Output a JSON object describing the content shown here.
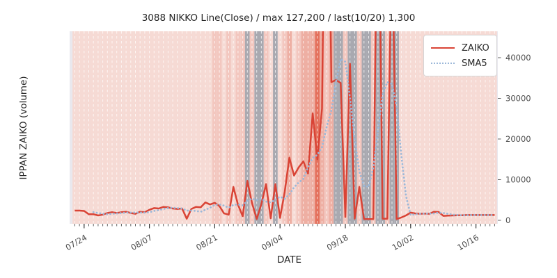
{
  "title": "3088 NIKKO Line(Close) / max 127,200 / last(10/20) 1,300",
  "chart_data": {
    "type": "line",
    "title": "3088 NIKKO Line(Close) / max 127,200 / last(10/20) 1,300",
    "xlabel": "DATE",
    "ylabel": "IPPAN ZAIKO (volume)",
    "x_start_date": "07/22",
    "x_tick_labels": [
      "07/24",
      "08/07",
      "08/21",
      "09/04",
      "09/18",
      "10/02",
      "10/16"
    ],
    "x_tick_indices": [
      2,
      16,
      30,
      44,
      58,
      72,
      86
    ],
    "y_ticks": [
      0,
      10000,
      20000,
      30000,
      40000
    ],
    "ylim": [
      -1500,
      46500
    ],
    "grid": "vertical daily white dashed",
    "legend_position": "upper right",
    "max_value": 127200,
    "last_value": 1300,
    "last_date": "10/20",
    "series": [
      {
        "name": "ZAIKO",
        "style": "solid",
        "color": "#d94335",
        "values": [
          2400,
          2400,
          2300,
          1500,
          1500,
          1200,
          1400,
          1800,
          2000,
          1800,
          2000,
          2100,
          1800,
          1600,
          2100,
          2000,
          2600,
          3000,
          2900,
          3300,
          3200,
          2900,
          2800,
          2900,
          400,
          2800,
          3300,
          3200,
          4400,
          3900,
          4300,
          3500,
          1700,
          1400,
          8200,
          3800,
          1000,
          9700,
          4200,
          300,
          4000,
          8900,
          500,
          8900,
          600,
          7000,
          15400,
          11000,
          13000,
          14500,
          11500,
          26300,
          15000,
          27500,
          127200,
          34000,
          34500,
          33800,
          800,
          38500,
          400,
          8200,
          300,
          300,
          300,
          95000,
          400,
          400,
          73000,
          300,
          700,
          1200,
          1900,
          1700,
          1600,
          1650,
          1600,
          2100,
          2050,
          1100,
          1150,
          1200,
          1250,
          1250,
          1300,
          1300,
          1300,
          1300,
          1300,
          1300,
          1300
        ]
      },
      {
        "name": "SMA5",
        "style": "dotted",
        "color": "#9cb8d9",
        "values": [
          null,
          null,
          null,
          null,
          2000,
          1800,
          1600,
          1500,
          1600,
          1700,
          1800,
          1900,
          1900,
          1900,
          1900,
          1900,
          2000,
          2300,
          2500,
          2800,
          3000,
          3100,
          3000,
          2900,
          2400,
          2400,
          2300,
          2100,
          2600,
          3100,
          3800,
          3900,
          3600,
          3100,
          3800,
          3900,
          3700,
          4800,
          5300,
          5000,
          5300,
          4600,
          4400,
          5100,
          5800,
          5300,
          6400,
          8100,
          9300,
          10200,
          13100,
          15300,
          16100,
          18000,
          23000,
          27000,
          34000,
          39700,
          39000,
          30000,
          20000,
          12000,
          8500,
          8200,
          13000,
          22000,
          31000,
          34000,
          33500,
          28000,
          16000,
          6000,
          1300,
          1500,
          1600,
          1650,
          1650,
          1700,
          1900,
          1800,
          1600,
          1400,
          1300,
          1250,
          1250,
          1300,
          1300,
          1300,
          1300,
          1300,
          1300
        ]
      }
    ],
    "band_palette": {
      "a": "#f6dad4",
      "b": "#f3c7bf",
      "c": "#eeafa3",
      "d": "#e4705c",
      "g": "#a9a9b0"
    },
    "background_bands": [
      "a",
      "a",
      "a",
      "a",
      "a",
      "a",
      "a",
      "a",
      "a",
      "a",
      "a",
      "a",
      "a",
      "a",
      "a",
      "a",
      "a",
      "a",
      "a",
      "a",
      "a",
      "a",
      "a",
      "a",
      "a",
      "a",
      "a",
      "a",
      "a",
      "a",
      "b",
      "b",
      "a",
      "b",
      "a",
      "b",
      "b",
      "g",
      "b",
      "g",
      "g",
      "b",
      "a",
      "g",
      "a",
      "b",
      "c",
      "a",
      "b",
      "c",
      "c",
      "c",
      "d",
      "c",
      "b",
      "c",
      "g",
      "g",
      "b",
      "g",
      "g",
      "b",
      "g",
      "g",
      "b",
      "g",
      "g",
      "b",
      "g",
      "g",
      "a",
      "a",
      "a",
      "a",
      "a",
      "a",
      "a",
      "a",
      "a",
      "a",
      "a",
      "a",
      "a",
      "a",
      "a",
      "a",
      "a",
      "a",
      "a",
      "a",
      "a"
    ]
  },
  "legend": {
    "entries": [
      "ZAIKO",
      "SMA5"
    ]
  }
}
